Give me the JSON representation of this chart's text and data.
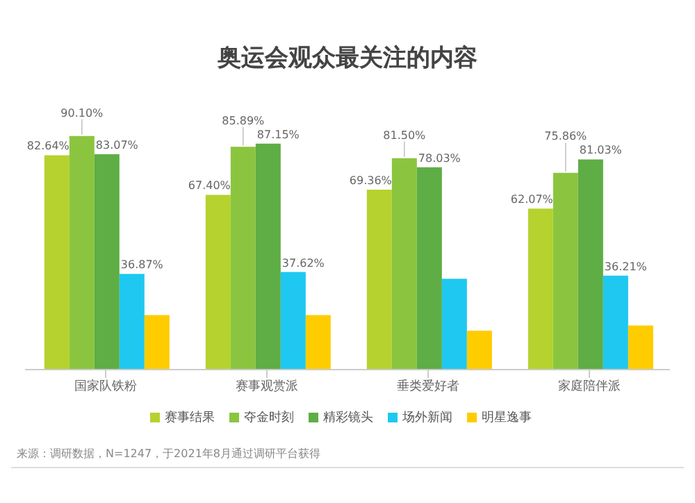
{
  "chart_data": {
    "type": "bar",
    "title": "奥运会观众最关注的内容",
    "categories": [
      "国家队铁粉",
      "赛事观赏派",
      "垂类爱好者",
      "家庭陪伴派"
    ],
    "series": [
      {
        "name": "赛事结果",
        "color": "#b5d22e",
        "values": [
          82.64,
          67.4,
          69.36,
          62.07
        ],
        "value_labels": [
          "82.64%",
          "67.40%",
          "69.36%",
          "62.07%"
        ]
      },
      {
        "name": "夺金时刻",
        "color": "#8bc53f",
        "values": [
          90.1,
          85.89,
          81.5,
          75.86
        ],
        "value_labels": [
          "90.10%",
          "85.89%",
          "81.50%",
          "75.86%"
        ]
      },
      {
        "name": "精彩镜头",
        "color": "#5fad45",
        "values": [
          83.07,
          87.15,
          78.03,
          81.03
        ],
        "value_labels": [
          "83.07%",
          "87.15%",
          "78.03%",
          "81.03%"
        ]
      },
      {
        "name": "场外新闻",
        "color": "#1fc8f0",
        "values": [
          36.87,
          37.62,
          35,
          36.21
        ],
        "value_labels": [
          "36.87%",
          "37.62%",
          null,
          "36.21%"
        ]
      },
      {
        "name": "明星逸事",
        "color": "#ffcc00",
        "values": [
          21,
          21,
          15,
          17
        ],
        "value_labels": [
          null,
          null,
          null,
          null
        ]
      }
    ],
    "legend": "bottom",
    "grid": false,
    "annotations": [
      "来源：调研数据，N=1247，于2021年8月通过调研平台获得"
    ]
  }
}
